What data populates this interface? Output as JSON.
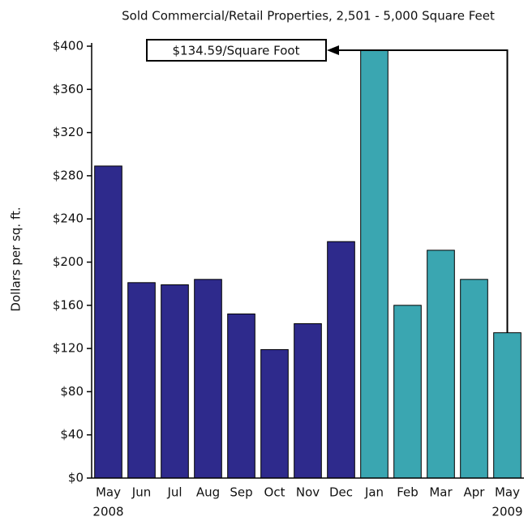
{
  "chart_data": {
    "type": "bar",
    "title": "Sold Commercial/Retail Properties, 2,501 - 5,000 Square Feet",
    "y_label": "Dollars per sq. ft.",
    "categories": [
      "May",
      "Jun",
      "Jul",
      "Aug",
      "Sep",
      "Oct",
      "Nov",
      "Dec",
      "Jan",
      "Feb",
      "Mar",
      "Apr",
      "May"
    ],
    "year_labels": [
      "2008",
      "2009"
    ],
    "values": [
      289,
      181,
      179,
      184,
      152,
      119,
      143,
      219,
      396,
      160,
      211,
      184,
      134.59
    ],
    "colors": [
      "#2e2a8c",
      "#2e2a8c",
      "#2e2a8c",
      "#2e2a8c",
      "#2e2a8c",
      "#2e2a8c",
      "#2e2a8c",
      "#2e2a8c",
      "#3aa6b1",
      "#3aa6b1",
      "#3aa6b1",
      "#3aa6b1",
      "#3aa6b1"
    ],
    "annotation": "$134.59/Square Foot",
    "ylim": [
      0,
      400
    ],
    "yticks": [
      {
        "value": 0,
        "label": "$0"
      },
      {
        "value": 40,
        "label": "$40"
      },
      {
        "value": 80,
        "label": "$80"
      },
      {
        "value": 120,
        "label": "$120"
      },
      {
        "value": 160,
        "label": "$160"
      },
      {
        "value": 200,
        "label": "$200"
      },
      {
        "value": 240,
        "label": "$240"
      },
      {
        "value": 280,
        "label": "$280"
      },
      {
        "value": 320,
        "label": "$320"
      },
      {
        "value": 360,
        "label": "$360"
      },
      {
        "value": 400,
        "label": "$400"
      }
    ],
    "grid": false
  }
}
